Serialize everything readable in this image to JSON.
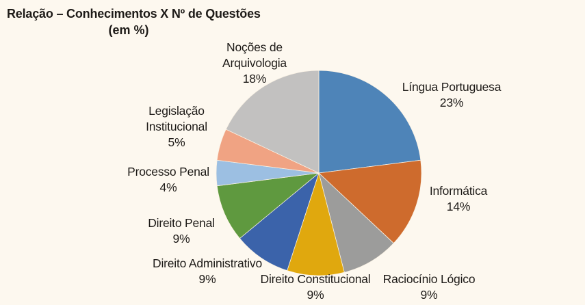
{
  "title": {
    "line1": "Relação – Conhecimentos X Nº de Questões",
    "line2": "(em %)"
  },
  "chart_data": {
    "type": "pie",
    "title": "Relação – Conhecimentos X Nº de Questões (em %)",
    "unit": "%",
    "start_angle": "12-oclock",
    "direction": "clockwise",
    "total": 100,
    "background_color": "#FDF8EF",
    "text_color": "#1E1B18",
    "slices": [
      {
        "label": "Língua Portuguesa",
        "value": 23,
        "pct": "23%",
        "color": "#4E84B8"
      },
      {
        "label": "Informática",
        "value": 14,
        "pct": "14%",
        "color": "#CE6B2D"
      },
      {
        "label": "Raciocínio Lógico",
        "value": 9,
        "pct": "9%",
        "color": "#9C9C9B"
      },
      {
        "label": "Direito Constitucional",
        "value": 9,
        "pct": "9%",
        "color": "#E0A80E"
      },
      {
        "label": "Direito Administrativo",
        "value": 9,
        "pct": "9%",
        "color": "#3B63AA"
      },
      {
        "label": "Direito Penal",
        "value": 9,
        "pct": "9%",
        "color": "#5F993F"
      },
      {
        "label": "Processo Penal",
        "value": 4,
        "pct": "4%",
        "color": "#9CBFE2"
      },
      {
        "label": "Legislação Institucional",
        "value": 5,
        "pct": "5%",
        "color": "#F0A383",
        "label_lines": [
          "Legislação",
          "Institucional"
        ]
      },
      {
        "label": "Noções de Arquivologia",
        "value": 18,
        "pct": "18%",
        "color": "#C2C1C0",
        "label_lines": [
          "Noções de",
          "Arquivologia"
        ]
      }
    ]
  }
}
